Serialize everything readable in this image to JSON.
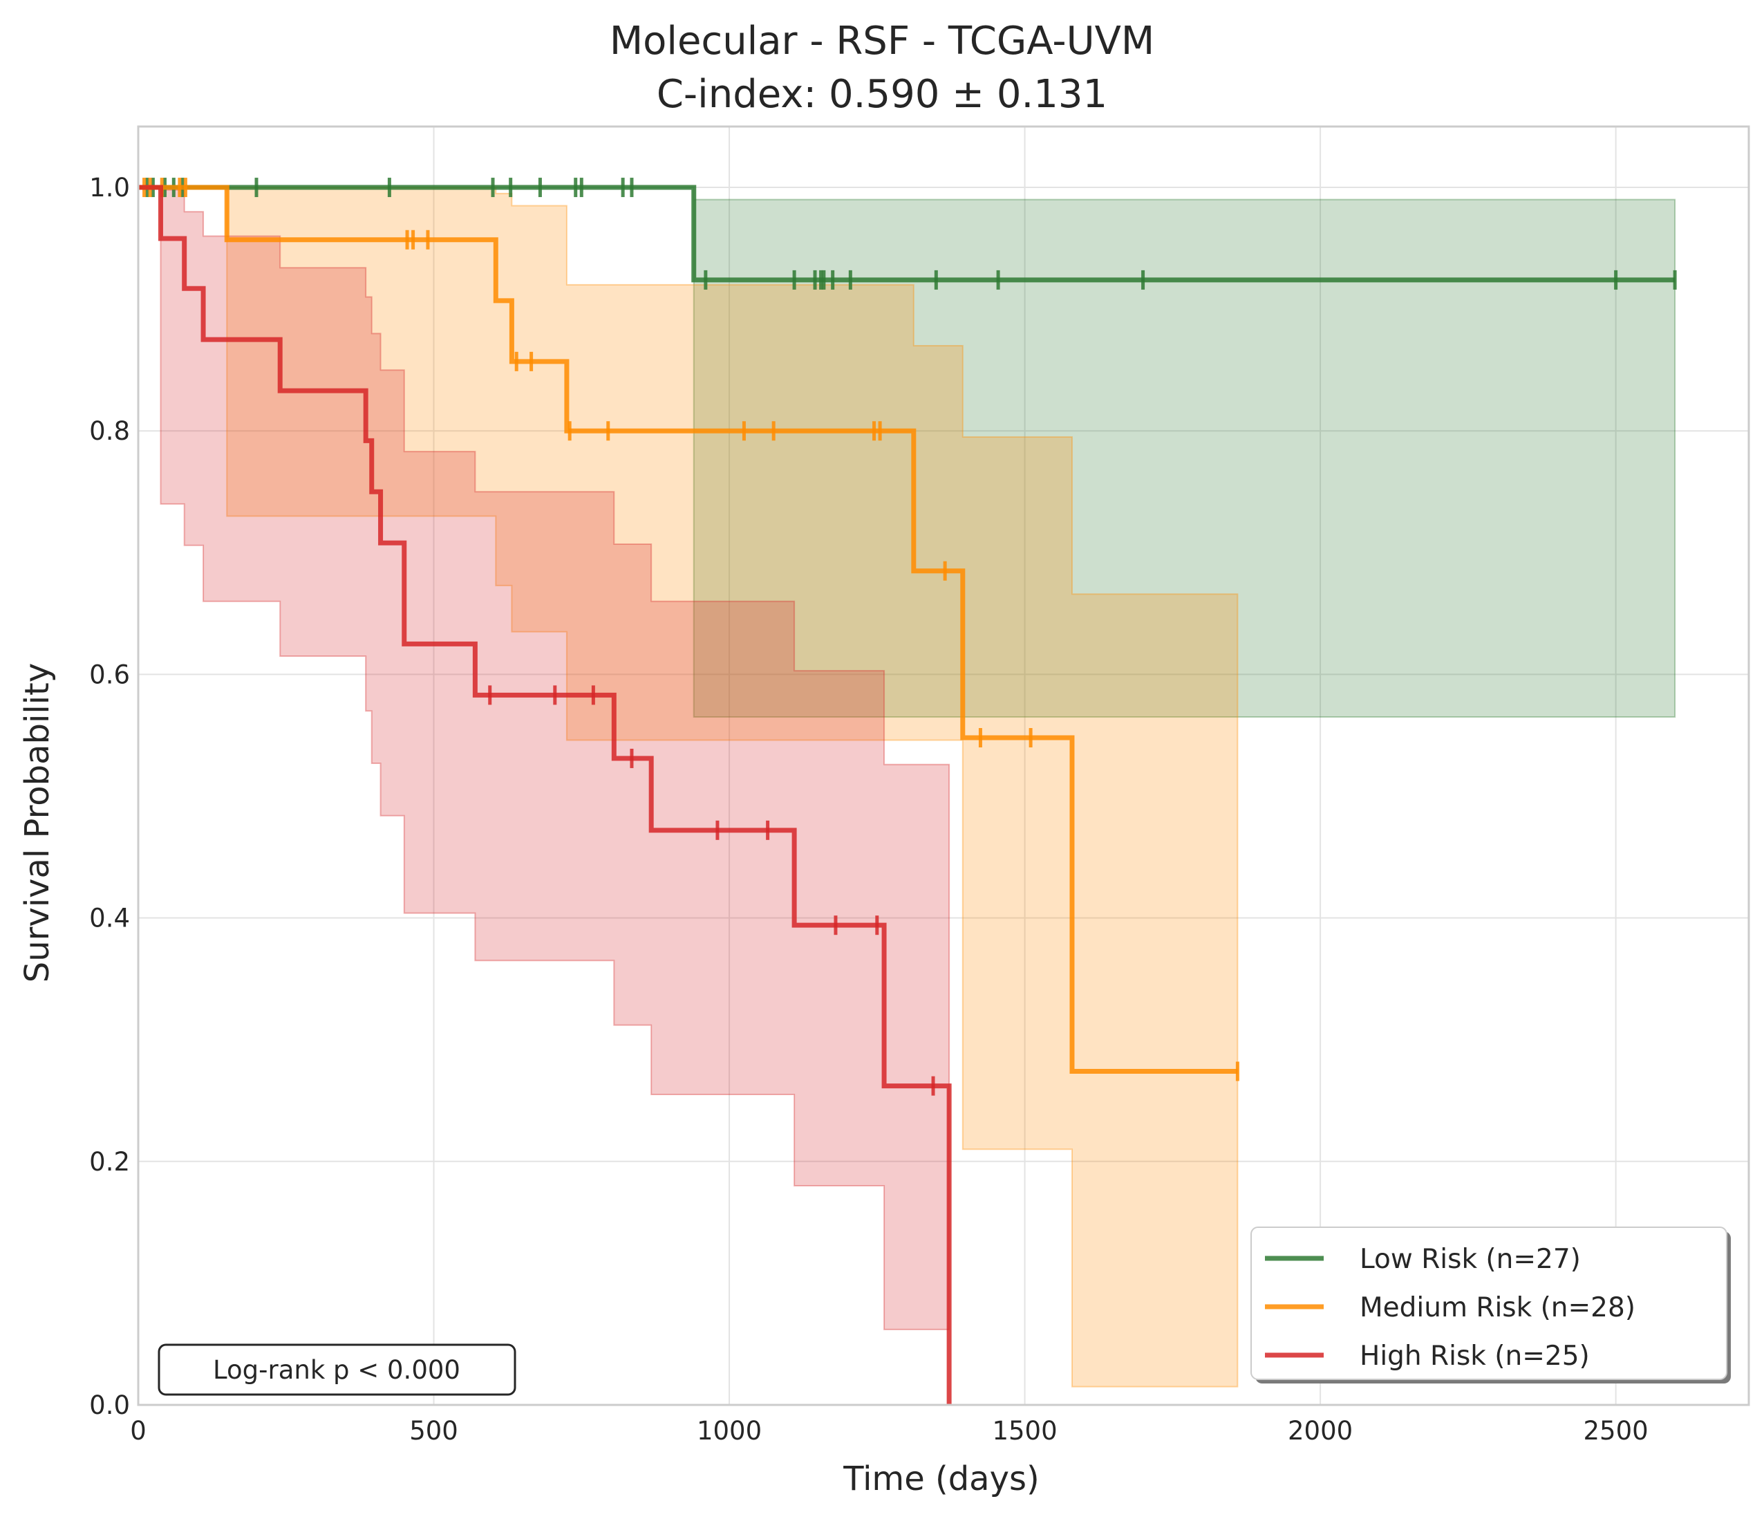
{
  "chart_data": {
    "type": "line",
    "subtype": "kaplan-meier",
    "title": "Molecular - RSF - TCGA-UVM",
    "subtitle": "C-index: 0.590 ± 0.131",
    "xlabel": "Time (days)",
    "ylabel": "Survival Probability",
    "xlim": [
      0,
      2725
    ],
    "ylim": [
      0,
      1.05
    ],
    "xticks": [
      0,
      500,
      1000,
      1500,
      2000,
      2500
    ],
    "xtick_labels": [
      "0",
      "500",
      "1000",
      "1500",
      "2000",
      "2500"
    ],
    "yticks": [
      0,
      0.2,
      0.4,
      0.6,
      0.8,
      1.0
    ],
    "ytick_labels": [
      "0.0",
      "0.2",
      "0.4",
      "0.6",
      "0.8",
      "1.0"
    ],
    "grid": true,
    "legend_position": "bottom-right",
    "annotation": "Log-rank p < 0.000",
    "series": [
      {
        "name": "Low Risk (n=27)",
        "color": "#2e7a32",
        "steps": [
          [
            0,
            1.0
          ],
          [
            940,
            1.0
          ],
          [
            940,
            0.924
          ],
          [
            2600,
            0.924
          ]
        ],
        "ci_band": [
          [
            0,
            1.0,
            1.0
          ],
          [
            940,
            0.565,
            0.99
          ],
          [
            2600,
            0.565,
            0.99
          ]
        ],
        "censors": [
          [
            15,
            1.0
          ],
          [
            25,
            1.0
          ],
          [
            45,
            1.0
          ],
          [
            60,
            1.0
          ],
          [
            75,
            1.0
          ],
          [
            200,
            1.0
          ],
          [
            425,
            1.0
          ],
          [
            600,
            1.0
          ],
          [
            630,
            1.0
          ],
          [
            680,
            1.0
          ],
          [
            740,
            1.0
          ],
          [
            750,
            1.0
          ],
          [
            820,
            1.0
          ],
          [
            835,
            1.0
          ],
          [
            960,
            0.924
          ],
          [
            1110,
            0.924
          ],
          [
            1145,
            0.924
          ],
          [
            1155,
            0.924
          ],
          [
            1160,
            0.924
          ],
          [
            1175,
            0.924
          ],
          [
            1205,
            0.924
          ],
          [
            1350,
            0.924
          ],
          [
            1455,
            0.924
          ],
          [
            1700,
            0.924
          ],
          [
            2500,
            0.924
          ],
          [
            2600,
            0.924
          ]
        ]
      },
      {
        "name": "Medium Risk (n=28)",
        "color": "#ff8c00",
        "steps": [
          [
            0,
            1.0
          ],
          [
            150,
            1.0
          ],
          [
            150,
            0.957
          ],
          [
            605,
            0.957
          ],
          [
            605,
            0.907
          ],
          [
            632,
            0.907
          ],
          [
            632,
            0.857
          ],
          [
            725,
            0.857
          ],
          [
            725,
            0.8
          ],
          [
            1312,
            0.8
          ],
          [
            1312,
            0.685
          ],
          [
            1395,
            0.685
          ],
          [
            1395,
            0.548
          ],
          [
            1580,
            0.548
          ],
          [
            1580,
            0.274
          ],
          [
            1860,
            0.274
          ]
        ],
        "ci_band": [
          [
            0,
            1.0,
            1.0
          ],
          [
            150,
            0.73,
            1.0
          ],
          [
            240,
            0.73,
            1.0
          ],
          [
            605,
            0.673,
            0.995
          ],
          [
            632,
            0.635,
            0.985
          ],
          [
            725,
            0.546,
            0.92
          ],
          [
            1312,
            0.546,
            0.87
          ],
          [
            1395,
            0.21,
            0.795
          ],
          [
            1580,
            0.015,
            0.666
          ],
          [
            1860,
            0.015,
            0.666
          ]
        ],
        "censors": [
          [
            10,
            1.0
          ],
          [
            20,
            1.0
          ],
          [
            40,
            1.0
          ],
          [
            70,
            1.0
          ],
          [
            80,
            1.0
          ],
          [
            455,
            0.957
          ],
          [
            465,
            0.957
          ],
          [
            490,
            0.957
          ],
          [
            640,
            0.857
          ],
          [
            665,
            0.857
          ],
          [
            730,
            0.8
          ],
          [
            795,
            0.8
          ],
          [
            1025,
            0.8
          ],
          [
            1075,
            0.8
          ],
          [
            1245,
            0.8
          ],
          [
            1255,
            0.8
          ],
          [
            1365,
            0.685
          ],
          [
            1425,
            0.548
          ],
          [
            1510,
            0.548
          ],
          [
            1860,
            0.274
          ]
        ]
      },
      {
        "name": "High Risk (n=25)",
        "color": "#d62728",
        "steps": [
          [
            0,
            1.0
          ],
          [
            38,
            1.0
          ],
          [
            38,
            0.958
          ],
          [
            78,
            0.958
          ],
          [
            78,
            0.917
          ],
          [
            110,
            0.917
          ],
          [
            110,
            0.875
          ],
          [
            240,
            0.875
          ],
          [
            240,
            0.833
          ],
          [
            385,
            0.833
          ],
          [
            385,
            0.792
          ],
          [
            395,
            0.792
          ],
          [
            395,
            0.75
          ],
          [
            410,
            0.75
          ],
          [
            410,
            0.708
          ],
          [
            450,
            0.708
          ],
          [
            450,
            0.625
          ],
          [
            570,
            0.625
          ],
          [
            570,
            0.583
          ],
          [
            805,
            0.583
          ],
          [
            805,
            0.531
          ],
          [
            868,
            0.531
          ],
          [
            868,
            0.472
          ],
          [
            1110,
            0.472
          ],
          [
            1110,
            0.394
          ],
          [
            1262,
            0.394
          ],
          [
            1262,
            0.262
          ],
          [
            1372,
            0.262
          ],
          [
            1372,
            0.0
          ]
        ],
        "ci_band": [
          [
            0,
            1.0,
            1.0
          ],
          [
            38,
            0.74,
            0.998
          ],
          [
            78,
            0.706,
            0.98
          ],
          [
            110,
            0.66,
            0.96
          ],
          [
            240,
            0.615,
            0.934
          ],
          [
            385,
            0.57,
            0.91
          ],
          [
            395,
            0.527,
            0.88
          ],
          [
            410,
            0.484,
            0.85
          ],
          [
            450,
            0.404,
            0.783
          ],
          [
            570,
            0.365,
            0.75
          ],
          [
            805,
            0.312,
            0.707
          ],
          [
            868,
            0.255,
            0.66
          ],
          [
            1110,
            0.18,
            0.603
          ],
          [
            1262,
            0.062,
            0.526
          ],
          [
            1372,
            0.062,
            0.526
          ]
        ],
        "censors": [
          [
            595,
            0.583
          ],
          [
            705,
            0.583
          ],
          [
            770,
            0.583
          ],
          [
            835,
            0.531
          ],
          [
            980,
            0.472
          ],
          [
            1065,
            0.472
          ],
          [
            1180,
            0.394
          ],
          [
            1250,
            0.394
          ],
          [
            1345,
            0.262
          ]
        ]
      }
    ]
  }
}
